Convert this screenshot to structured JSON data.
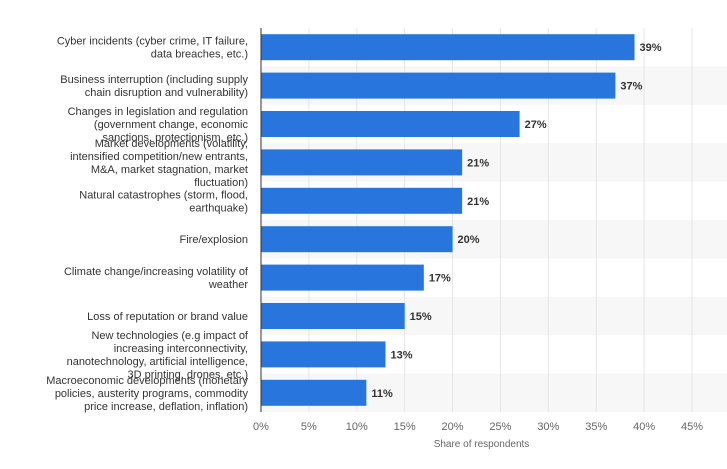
{
  "chart_data": {
    "type": "bar",
    "orientation": "horizontal",
    "categories": [
      [
        "Cyber incidents (cyber crime, IT failure,",
        "data breaches, etc.)"
      ],
      [
        "Business interruption (including supply",
        "chain disruption and vulnerability)"
      ],
      [
        "Changes in legislation and regulation",
        "(government change, economic",
        "sanctions, protectionism, etc.)"
      ],
      [
        "Market developments (volatility,",
        "intensified competition/new entrants,",
        "M&A, market stagnation, market",
        "fluctuation)"
      ],
      [
        "Natural catastrophes (storm, flood,",
        "earthquake)"
      ],
      [
        "Fire/explosion"
      ],
      [
        "Climate change/increasing volatility of",
        "weather"
      ],
      [
        "Loss of reputation or brand value"
      ],
      [
        "New technologies (e.g impact of",
        "increasing interconnectivity,",
        "nanotechnology, artificial intelligence,",
        "3D printing, drones, etc.)"
      ],
      [
        "Macroeconomic developments (monetary",
        "policies, austerity programs, commodity",
        "price increase, deflation, inflation)"
      ]
    ],
    "values": [
      39,
      37,
      27,
      21,
      21,
      20,
      17,
      15,
      13,
      11
    ],
    "data_labels": [
      "39%",
      "37%",
      "27%",
      "21%",
      "21%",
      "20%",
      "17%",
      "15%",
      "13%",
      "11%"
    ],
    "xlim": [
      0,
      45
    ],
    "x_ticks": [
      0,
      5,
      10,
      15,
      20,
      25,
      30,
      35,
      40,
      45
    ],
    "x_tick_labels": [
      "0%",
      "5%",
      "10%",
      "15%",
      "20%",
      "25%",
      "30%",
      "35%",
      "40%",
      "45%"
    ],
    "xlabel": "Share of respondents",
    "ylabel": "",
    "title": "",
    "grid": true,
    "colors": {
      "bar": "#2876dd",
      "band": "#f7f7f7",
      "grid": "#e6e6e6",
      "axis": "#333333",
      "label": "#333333",
      "tick": "#666666"
    }
  }
}
